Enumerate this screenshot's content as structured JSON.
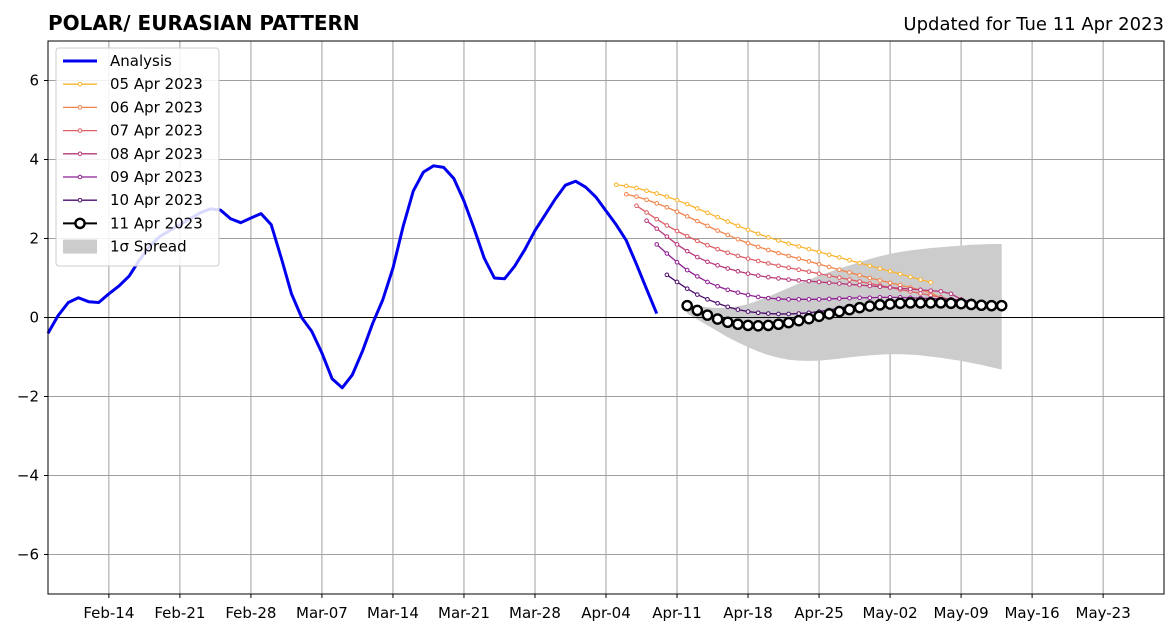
{
  "chart_data": {
    "type": "line",
    "title": "POLAR/ EURASIAN  PATTERN",
    "subtitle": "Updated for Tue 11 Apr 2023",
    "xlabel": "",
    "ylabel": "",
    "x_range": [
      "2023-02-08",
      "2023-05-29"
    ],
    "ylim": [
      -7,
      7
    ],
    "y_ticks": [
      6,
      4,
      2,
      0,
      -2,
      -4,
      -6
    ],
    "y_tick_labels": [
      "6",
      "4",
      "2",
      "0",
      "−2",
      "−4",
      "−6"
    ],
    "x_ticks": [
      "2023-02-14",
      "2023-02-21",
      "2023-02-28",
      "2023-03-07",
      "2023-03-14",
      "2023-03-21",
      "2023-03-28",
      "2023-04-04",
      "2023-04-11",
      "2023-04-18",
      "2023-04-25",
      "2023-05-02",
      "2023-05-09",
      "2023-05-16",
      "2023-05-23"
    ],
    "x_tick_labels": [
      "Feb-14",
      "Feb-21",
      "Feb-28",
      "Mar-07",
      "Mar-14",
      "Mar-21",
      "Mar-28",
      "Apr-04",
      "Apr-11",
      "Apr-18",
      "Apr-25",
      "May-02",
      "May-09",
      "May-16",
      "May-23"
    ],
    "grid": true,
    "legend_position": "top-left",
    "analysis": {
      "name": "Analysis",
      "color": "#0000ee",
      "start_date": "2023-02-08",
      "values": [
        -0.4,
        0.05,
        0.38,
        0.5,
        0.4,
        0.38,
        0.6,
        0.8,
        1.05,
        1.45,
        1.8,
        2.05,
        2.2,
        2.35,
        2.5,
        2.65,
        2.75,
        2.72,
        2.5,
        2.4,
        2.52,
        2.63,
        2.35,
        1.5,
        0.6,
        0.0,
        -0.35,
        -0.9,
        -1.55,
        -1.78,
        -1.45,
        -0.85,
        -0.15,
        0.45,
        1.25,
        2.3,
        3.2,
        3.68,
        3.84,
        3.8,
        3.52,
        2.95,
        2.25,
        1.5,
        1.0,
        0.98,
        1.3,
        1.72,
        2.2,
        2.6,
        3.0,
        3.35,
        3.45,
        3.3,
        3.05,
        2.7,
        2.35,
        1.95,
        1.35,
        0.72,
        0.1
      ]
    },
    "forecasts": [
      {
        "name": "05 Apr 2023",
        "color": "#fbb32f",
        "start_date": "2023-04-05",
        "values": [
          3.36,
          3.33,
          3.28,
          3.21,
          3.14,
          3.06,
          2.97,
          2.87,
          2.76,
          2.65,
          2.54,
          2.43,
          2.32,
          2.22,
          2.12,
          2.03,
          1.95,
          1.87,
          1.8,
          1.73,
          1.66,
          1.59,
          1.52,
          1.45,
          1.38,
          1.31,
          1.24,
          1.17,
          1.1,
          1.03,
          0.96,
          0.89
        ]
      },
      {
        "name": "06 Apr 2023",
        "color": "#f1844b",
        "start_date": "2023-04-06",
        "values": [
          3.12,
          3.06,
          2.98,
          2.89,
          2.79,
          2.68,
          2.56,
          2.44,
          2.32,
          2.2,
          2.09,
          1.98,
          1.88,
          1.79,
          1.71,
          1.63,
          1.56,
          1.49,
          1.42,
          1.35,
          1.28,
          1.21,
          1.14,
          1.07,
          1.0,
          0.94,
          0.88,
          0.82,
          0.76,
          0.7,
          0.62,
          0.5
        ]
      },
      {
        "name": "07 Apr 2023",
        "color": "#dc5e65",
        "start_date": "2023-04-07",
        "values": [
          2.83,
          2.66,
          2.49,
          2.33,
          2.19,
          2.06,
          1.94,
          1.83,
          1.73,
          1.64,
          1.56,
          1.49,
          1.43,
          1.37,
          1.31,
          1.26,
          1.21,
          1.16,
          1.11,
          1.06,
          1.01,
          0.96,
          0.91,
          0.86,
          0.81,
          0.76,
          0.71,
          0.66,
          0.61,
          0.56,
          0.51,
          0.46
        ]
      },
      {
        "name": "08 Apr 2023",
        "color": "#b73779",
        "start_date": "2023-04-08",
        "values": [
          2.45,
          2.25,
          2.05,
          1.85,
          1.68,
          1.53,
          1.41,
          1.32,
          1.24,
          1.17,
          1.11,
          1.06,
          1.02,
          0.99,
          0.96,
          0.94,
          0.92,
          0.9,
          0.88,
          0.86,
          0.84,
          0.82,
          0.8,
          0.78,
          0.76,
          0.74,
          0.72,
          0.7,
          0.68,
          0.66,
          0.6,
          0.46
        ]
      },
      {
        "name": "09 Apr 2023",
        "color": "#8e1d92",
        "start_date": "2023-04-09",
        "values": [
          1.85,
          1.62,
          1.4,
          1.2,
          1.04,
          0.9,
          0.79,
          0.7,
          0.63,
          0.57,
          0.52,
          0.49,
          0.47,
          0.46,
          0.46,
          0.46,
          0.46,
          0.47,
          0.48,
          0.49,
          0.5,
          0.5,
          0.51,
          0.51,
          0.51,
          0.5,
          0.49,
          0.48,
          0.47,
          0.46,
          0.44,
          0.42
        ]
      },
      {
        "name": "10 Apr 2023",
        "color": "#4b0c6b",
        "start_date": "2023-04-10",
        "values": [
          1.08,
          0.9,
          0.73,
          0.58,
          0.46,
          0.36,
          0.27,
          0.2,
          0.15,
          0.12,
          0.1,
          0.09,
          0.09,
          0.1,
          0.12,
          0.15,
          0.19,
          0.24,
          0.28,
          0.31,
          0.33,
          0.35,
          0.36,
          0.37,
          0.38,
          0.38,
          0.38,
          0.37,
          0.36,
          0.35,
          0.34,
          0.33
        ]
      },
      {
        "name": "11 Apr 2023",
        "color": "#000000",
        "start_date": "2023-04-12",
        "values": [
          0.3,
          0.18,
          0.06,
          -0.04,
          -0.12,
          -0.17,
          -0.2,
          -0.21,
          -0.2,
          -0.17,
          -0.13,
          -0.08,
          -0.03,
          0.03,
          0.09,
          0.15,
          0.2,
          0.25,
          0.29,
          0.32,
          0.34,
          0.36,
          0.37,
          0.37,
          0.37,
          0.37,
          0.36,
          0.35,
          0.33,
          0.31,
          0.3,
          0.3
        ]
      }
    ],
    "spread": {
      "name": "1σ Spread",
      "color": "#cccccc",
      "start_date": "2023-04-12",
      "upper": [
        0.34,
        0.3,
        0.26,
        0.24,
        0.25,
        0.28,
        0.34,
        0.43,
        0.53,
        0.64,
        0.75,
        0.86,
        0.96,
        1.06,
        1.15,
        1.24,
        1.32,
        1.4,
        1.48,
        1.55,
        1.61,
        1.66,
        1.7,
        1.73,
        1.76,
        1.78,
        1.8,
        1.82,
        1.84,
        1.85,
        1.86,
        1.86
      ],
      "lower": [
        0.1,
        -0.05,
        -0.2,
        -0.35,
        -0.5,
        -0.63,
        -0.75,
        -0.86,
        -0.95,
        -1.02,
        -1.07,
        -1.09,
        -1.1,
        -1.09,
        -1.07,
        -1.04,
        -1.01,
        -0.98,
        -0.96,
        -0.94,
        -0.93,
        -0.93,
        -0.94,
        -0.96,
        -0.99,
        -1.02,
        -1.06,
        -1.1,
        -1.15,
        -1.2,
        -1.26,
        -1.32
      ]
    }
  }
}
